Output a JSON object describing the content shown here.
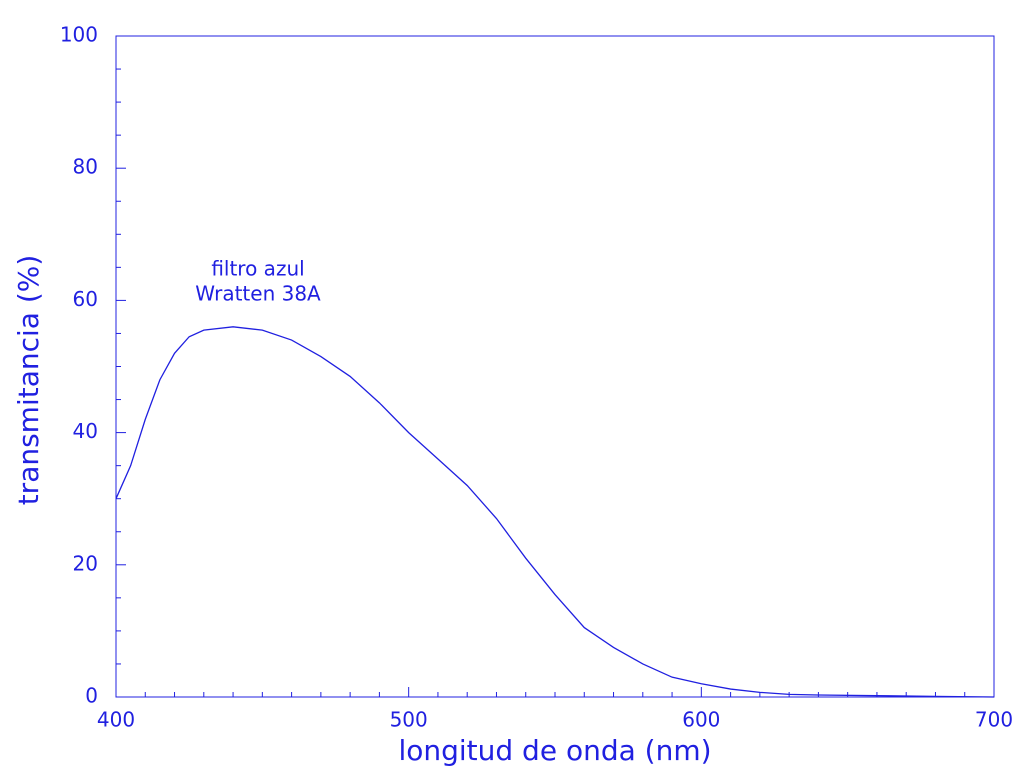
{
  "chart_data": {
    "type": "line",
    "x_label": "longitud de onda (nm)",
    "y_label": "transmitancia (%)",
    "annotation": [
      "filtro azul",
      "Wratten 38A"
    ],
    "color": "#2020e0",
    "x": [
      400,
      405,
      410,
      415,
      420,
      425,
      430,
      440,
      450,
      460,
      470,
      480,
      490,
      500,
      510,
      520,
      530,
      540,
      550,
      560,
      570,
      580,
      590,
      600,
      610,
      620,
      630,
      640,
      660,
      680,
      700
    ],
    "values": [
      30,
      35,
      42,
      48,
      52,
      54.5,
      55.5,
      56,
      55.5,
      54,
      51.5,
      48.5,
      44.5,
      40,
      36,
      32,
      27,
      21,
      15.5,
      10.5,
      7.5,
      5,
      3,
      2,
      1.2,
      0.7,
      0.4,
      0.3,
      0.2,
      0.1,
      0
    ],
    "xlim": [
      400,
      700
    ],
    "ylim": [
      0,
      100
    ],
    "xticks": [
      400,
      500,
      600,
      700
    ],
    "yticks": [
      0,
      20,
      40,
      60,
      80,
      100
    ],
    "x_minor_ticks": [
      410,
      420,
      430,
      440,
      450,
      460,
      470,
      480,
      490,
      510,
      520,
      530,
      540,
      550,
      560,
      570,
      580,
      590,
      610,
      620,
      630,
      640,
      650,
      660,
      670,
      680,
      690
    ],
    "y_minor_ticks": [
      5,
      10,
      15,
      25,
      30,
      35,
      45,
      50,
      55,
      65,
      70,
      75,
      85,
      90,
      95
    ]
  }
}
